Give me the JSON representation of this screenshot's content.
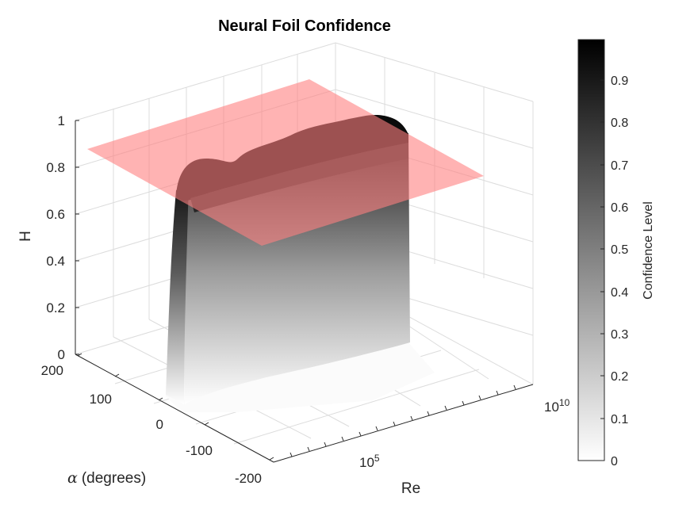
{
  "chart_data": {
    "type": "surface",
    "title": "Neural Foil Confidence",
    "zlabel": "H",
    "ylabel_symbol": "α",
    "ylabel_text": "(degrees)",
    "xlabel": "Re",
    "x_scale": "log",
    "x_ticks": [
      {
        "base": "10",
        "exp": "5",
        "value": 100000
      },
      {
        "base": "10",
        "exp": "10",
        "value": 10000000000
      }
    ],
    "y_ticks": [
      "200",
      "100",
      "0",
      "-100",
      "-200"
    ],
    "z_ticks": [
      "0",
      "0.2",
      "0.4",
      "0.6",
      "0.8",
      "1"
    ],
    "ylim": [
      -200,
      200
    ],
    "zlim": [
      0,
      1
    ],
    "grid": true,
    "colormap": "gray (white to black)",
    "threshold_plane": {
      "z": 0.85,
      "color": "#ff8080",
      "alpha": 0.6
    },
    "colorbar": {
      "label": "Confidence Level",
      "ticks": [
        "0",
        "0.1",
        "0.2",
        "0.3",
        "0.4",
        "0.5",
        "0.6",
        "0.7",
        "0.8",
        "0.9"
      ],
      "range": [
        0,
        1
      ]
    }
  }
}
